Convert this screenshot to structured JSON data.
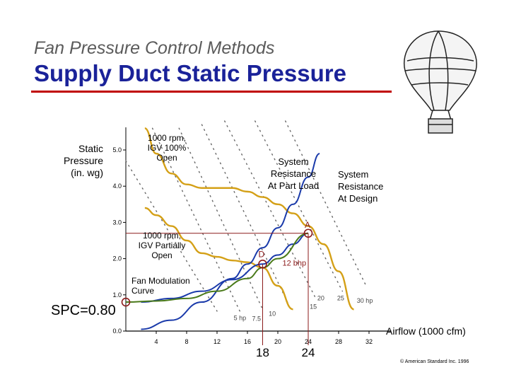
{
  "header": {
    "subtitle": "Fan Pressure Control Methods",
    "title": "Supply Duct Static Pressure"
  },
  "annotations": {
    "fan_full": "1000 rpm,\nIGV 100%\nOpen",
    "fan_partial": "1000 rpm,\nIGV Partially\nOpen",
    "part_load": "System\nResistance\nAt Part Load",
    "design": "System\nResistance\nAt Design",
    "fan_modulation": "Fan Modulation\nCurve",
    "point_a": "A",
    "point_d": "D",
    "bhp_12": "12 bhp",
    "spc": "SPC=0.80",
    "highlight_d": "18",
    "highlight_a": "24",
    "copyright": "© American Standard Inc. 1996"
  },
  "colors": {
    "title": "#1a2299",
    "rule": "#c00000",
    "fan_curve": "#d4a017",
    "system_curve": "#1a3aaa",
    "modulation_curve": "#4a7a1a",
    "marker": "#8b1a1a"
  },
  "chart_data": {
    "type": "line",
    "ylabel": "Static\nPressure\n(in. wg)",
    "xlabel": "Airflow (1000 cfm)",
    "xlim": [
      0,
      34
    ],
    "ylim": [
      0,
      5.9
    ],
    "x_ticks": [
      4,
      8,
      12,
      16,
      20,
      24,
      28,
      32
    ],
    "y_ticks": [
      "0.0",
      "1.0",
      "2.0",
      "3.0",
      "4.0",
      "5.0"
    ],
    "bhp_labels": [
      "5 hp",
      "7.5",
      "10",
      "15",
      "20",
      "25",
      "30 hp"
    ],
    "series": [
      {
        "name": "1000 rpm, IGV 100% Open",
        "x": [
          2.5,
          4,
          6,
          8,
          10,
          12,
          14,
          16,
          18,
          20,
          22,
          24,
          26,
          28,
          30
        ],
        "y": [
          5.6,
          4.9,
          4.35,
          4.05,
          3.95,
          3.95,
          3.95,
          3.85,
          3.7,
          3.5,
          3.25,
          2.9,
          2.4,
          1.65,
          0.6
        ]
      },
      {
        "name": "1000 rpm, IGV Partially Open",
        "x": [
          2.5,
          4,
          6,
          8,
          10,
          12,
          14,
          16,
          18,
          20,
          22
        ],
        "y": [
          3.4,
          3.2,
          2.9,
          2.5,
          2.15,
          2.05,
          1.95,
          1.9,
          1.75,
          1.25,
          0.6
        ]
      },
      {
        "name": "System Resistance At Design",
        "x": [
          2,
          6,
          10,
          14,
          18,
          20,
          22,
          24
        ],
        "y": [
          0.8,
          0.9,
          1.1,
          1.42,
          1.85,
          2.1,
          2.4,
          2.7
        ]
      },
      {
        "name": "System Resistance At Part Load",
        "x": [
          2,
          6,
          10,
          14,
          16,
          18,
          20,
          22,
          24,
          25.5
        ],
        "y": [
          0.05,
          0.3,
          0.8,
          1.45,
          1.85,
          2.3,
          2.85,
          3.5,
          4.25,
          4.9
        ]
      },
      {
        "name": "Fan Modulation Curve",
        "x": [
          0,
          4,
          8,
          12,
          16,
          18,
          20,
          24
        ],
        "y": [
          0.8,
          0.83,
          0.9,
          1.1,
          1.45,
          1.75,
          2.0,
          2.7
        ]
      }
    ],
    "points": [
      {
        "label": "A",
        "x": 24,
        "y": 2.7
      },
      {
        "label": "D",
        "x": 18,
        "y": 1.85
      },
      {
        "label": "SPC",
        "x": 0,
        "y": 0.8
      }
    ]
  }
}
